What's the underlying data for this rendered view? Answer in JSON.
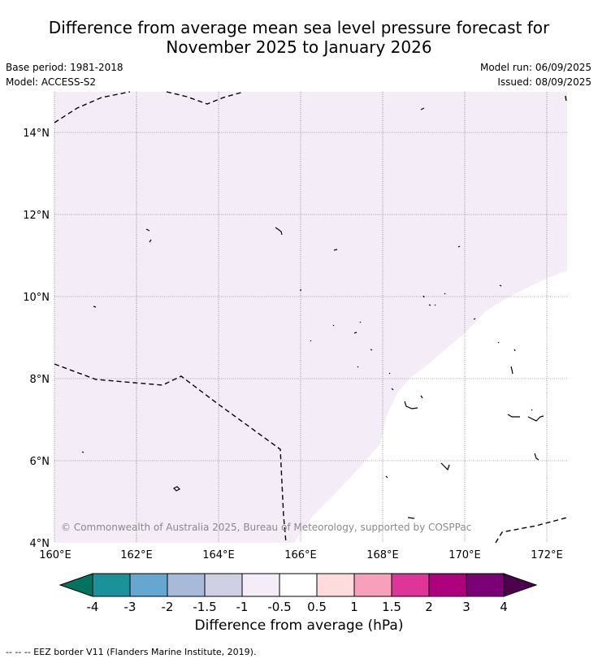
{
  "title_line1": "Difference from average mean sea level pressure forecast for",
  "title_line2": "November 2025 to January 2026",
  "meta": {
    "base_period": "Base period: 1981-2018",
    "model": "Model: ACCESS-S2",
    "model_run": "Model run: 06/09/2025",
    "issued": "Issued: 08/09/2025"
  },
  "map": {
    "lon_labels": [
      "160°E",
      "162°E",
      "164°E",
      "166°E",
      "168°E",
      "170°E",
      "172°E"
    ],
    "lat_labels": [
      "14°N",
      "12°N",
      "10°N",
      "8°N",
      "6°N",
      "4°N"
    ],
    "copyright": "© Commonwealth of Australia 2025, Bureau of Meteorology, supported by COSPPac",
    "shading_category": "-1 to -0.5",
    "shading_color": "#f4ecf6"
  },
  "colorbar": {
    "title": "Difference from average (hPa)",
    "tick_labels": [
      "-4",
      "-3",
      "-2",
      "-1.5",
      "-1",
      "-0.5",
      "0.5",
      "1",
      "1.5",
      "2",
      "3",
      "4"
    ],
    "colors": [
      "#02735e",
      "#1b9199",
      "#66a7d1",
      "#a7bad9",
      "#d0d0e4",
      "#f4ecf6",
      "#ffffff",
      "#fddcdb",
      "#f7a0bb",
      "#dd3598",
      "#ad017e",
      "#7b0177",
      "#4d004b"
    ]
  },
  "footnote": "--  --  -- EEZ border V11 (Flanders Marine Institute, 2019)."
}
